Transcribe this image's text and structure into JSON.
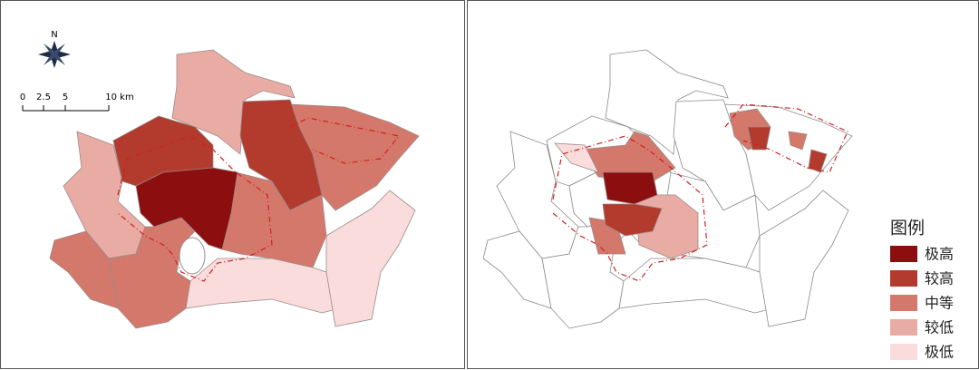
{
  "compass": {
    "label": "N"
  },
  "scale_bar": {
    "labels": [
      "0",
      "2.5",
      "5",
      "10 km"
    ]
  },
  "legend": {
    "title": "图例",
    "items": [
      {
        "label": "极高",
        "color": "#8c0e0e"
      },
      {
        "label": "较高",
        "color": "#b23b2e"
      },
      {
        "label": "中等",
        "color": "#d4786c"
      },
      {
        "label": "较低",
        "color": "#e9aca4"
      },
      {
        "label": "极低",
        "color": "#fadcdc"
      }
    ]
  }
}
